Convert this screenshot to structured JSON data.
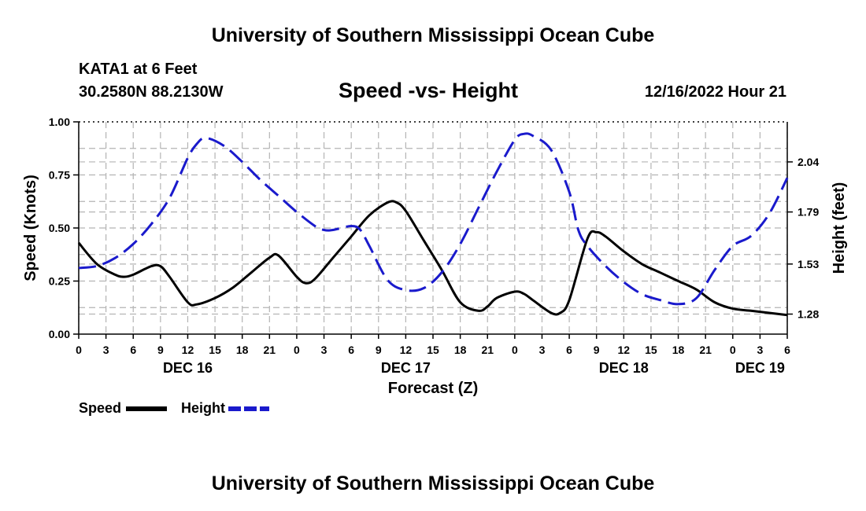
{
  "header": {
    "title_top": "University of Southern Mississippi Ocean Cube",
    "station": "KATA1 at 6 Feet",
    "coords": "30.2580N  88.2130W",
    "subtitle": "Speed -vs- Height",
    "timestamp": "12/16/2022 Hour 21",
    "title_bottom": "University of Southern Mississippi Ocean Cube"
  },
  "legend": {
    "speed_label": "Speed",
    "height_label": "Height"
  },
  "colors": {
    "speed": "#000000",
    "height": "#1a1acc",
    "grid": "#b4b4b4"
  },
  "chart_data": {
    "type": "line",
    "title": "Speed -vs- Height",
    "xlabel": "Forecast (Z)",
    "ylabel": "Speed (Knots)",
    "y2label": "Height (feet)",
    "xlim": [
      0,
      78
    ],
    "ylim": [
      0,
      1.0
    ],
    "y2lim": [
      1.18,
      2.24
    ],
    "x_tick_labels": [
      "0",
      "3",
      "6",
      "9",
      "12",
      "15",
      "18",
      "21",
      "0",
      "3",
      "6",
      "9",
      "12",
      "15",
      "18",
      "21",
      "0",
      "3",
      "6",
      "9",
      "12",
      "15",
      "18",
      "21",
      "0",
      "3",
      "6"
    ],
    "date_labels": [
      {
        "hour": 12,
        "label": "DEC 16"
      },
      {
        "hour": 36,
        "label": "DEC 17"
      },
      {
        "hour": 60,
        "label": "DEC 18"
      },
      {
        "hour": 75,
        "label": "DEC 19"
      }
    ],
    "y_ticks": [
      "0.00",
      "0.25",
      "0.50",
      "0.75",
      "1.00"
    ],
    "y_tick_values": [
      0,
      0.25,
      0.5,
      0.75,
      1.0
    ],
    "y2_ticks": [
      "1.28",
      "1.53",
      "1.79",
      "2.04"
    ],
    "y2_tick_values": [
      1.28,
      1.53,
      1.79,
      2.04
    ],
    "grid": true,
    "legend_position": "bottom-left",
    "series": [
      {
        "name": "Speed",
        "axis": "left",
        "style": "solid",
        "x": [
          0,
          2,
          4,
          5,
          6,
          8,
          9,
          10,
          12,
          13,
          15,
          17,
          19,
          21,
          22,
          24,
          25,
          26,
          28,
          30,
          32,
          34,
          35,
          36,
          38,
          40,
          42,
          44,
          45,
          46,
          48,
          49,
          50,
          52,
          53,
          54,
          56,
          57,
          58,
          60,
          62,
          64,
          66,
          68,
          70,
          72,
          74,
          76,
          78
        ],
        "values": [
          0.43,
          0.33,
          0.28,
          0.27,
          0.28,
          0.32,
          0.32,
          0.27,
          0.15,
          0.14,
          0.17,
          0.22,
          0.29,
          0.36,
          0.37,
          0.27,
          0.24,
          0.26,
          0.36,
          0.46,
          0.56,
          0.62,
          0.62,
          0.58,
          0.44,
          0.3,
          0.15,
          0.11,
          0.13,
          0.17,
          0.2,
          0.19,
          0.16,
          0.1,
          0.1,
          0.16,
          0.45,
          0.48,
          0.46,
          0.39,
          0.33,
          0.29,
          0.25,
          0.21,
          0.15,
          0.12,
          0.11,
          0.1,
          0.09
        ]
      },
      {
        "name": "Height",
        "axis": "right",
        "style": "dashed",
        "x": [
          0,
          2,
          4,
          6,
          8,
          10,
          12,
          13,
          14,
          16,
          18,
          20,
          22,
          24,
          26,
          27,
          28,
          30,
          31,
          32,
          34,
          36,
          38,
          40,
          42,
          44,
          46,
          48,
          49,
          50,
          52,
          54,
          55,
          56,
          58,
          60,
          62,
          64,
          66,
          68,
          70,
          72,
          74,
          76,
          78
        ],
        "values": [
          1.51,
          1.52,
          1.56,
          1.63,
          1.73,
          1.86,
          2.06,
          2.13,
          2.16,
          2.12,
          2.04,
          1.95,
          1.87,
          1.79,
          1.72,
          1.7,
          1.7,
          1.72,
          1.7,
          1.62,
          1.45,
          1.4,
          1.41,
          1.49,
          1.63,
          1.81,
          1.99,
          2.15,
          2.18,
          2.17,
          2.1,
          1.89,
          1.7,
          1.62,
          1.52,
          1.44,
          1.38,
          1.35,
          1.33,
          1.36,
          1.5,
          1.62,
          1.67,
          1.78,
          1.96
        ]
      }
    ]
  }
}
